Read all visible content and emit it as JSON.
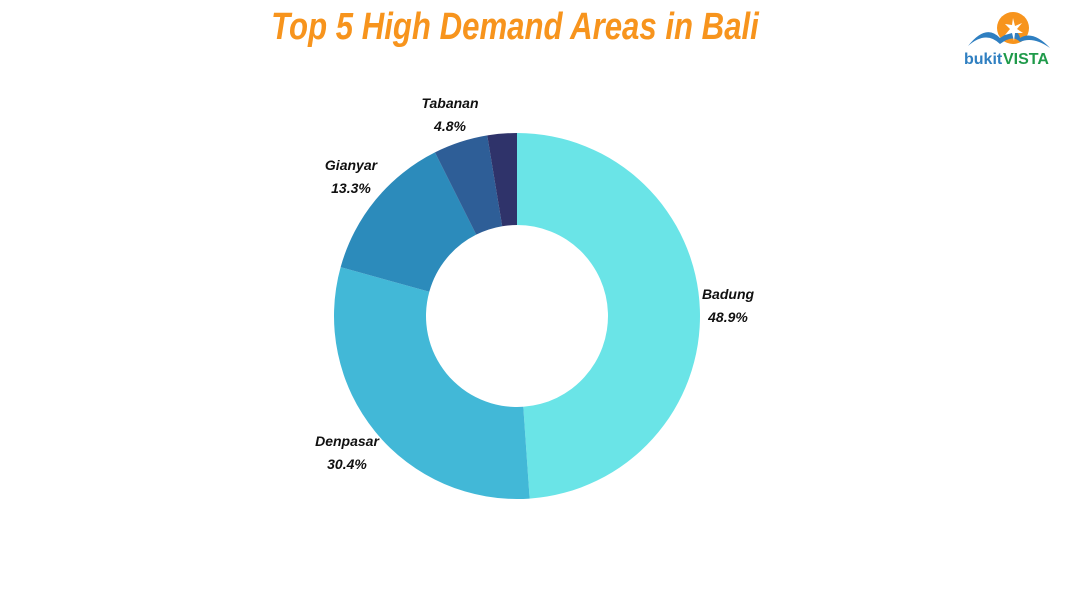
{
  "chart_data": {
    "type": "pie",
    "donut": true,
    "title": "Top 5 High Demand Areas in Bali",
    "start": "top",
    "direction": "clockwise",
    "slices": [
      {
        "label": "Badung",
        "value": 48.9,
        "display": "48.9%",
        "color": "#6ae4e7"
      },
      {
        "label": "Denpasar",
        "value": 30.4,
        "display": "30.4%",
        "color": "#42b8d7"
      },
      {
        "label": "Gianyar",
        "value": 13.3,
        "display": "13.3%",
        "color": "#2c8bbb"
      },
      {
        "label": "Tabanan",
        "value": 4.8,
        "display": "4.8%",
        "color": "#2e5e97"
      },
      {
        "label": "",
        "value": 2.6,
        "display": "",
        "color": "#2f336a"
      }
    ]
  },
  "logo": {
    "text_part1": "bukit",
    "text_part2": "VISTA"
  }
}
